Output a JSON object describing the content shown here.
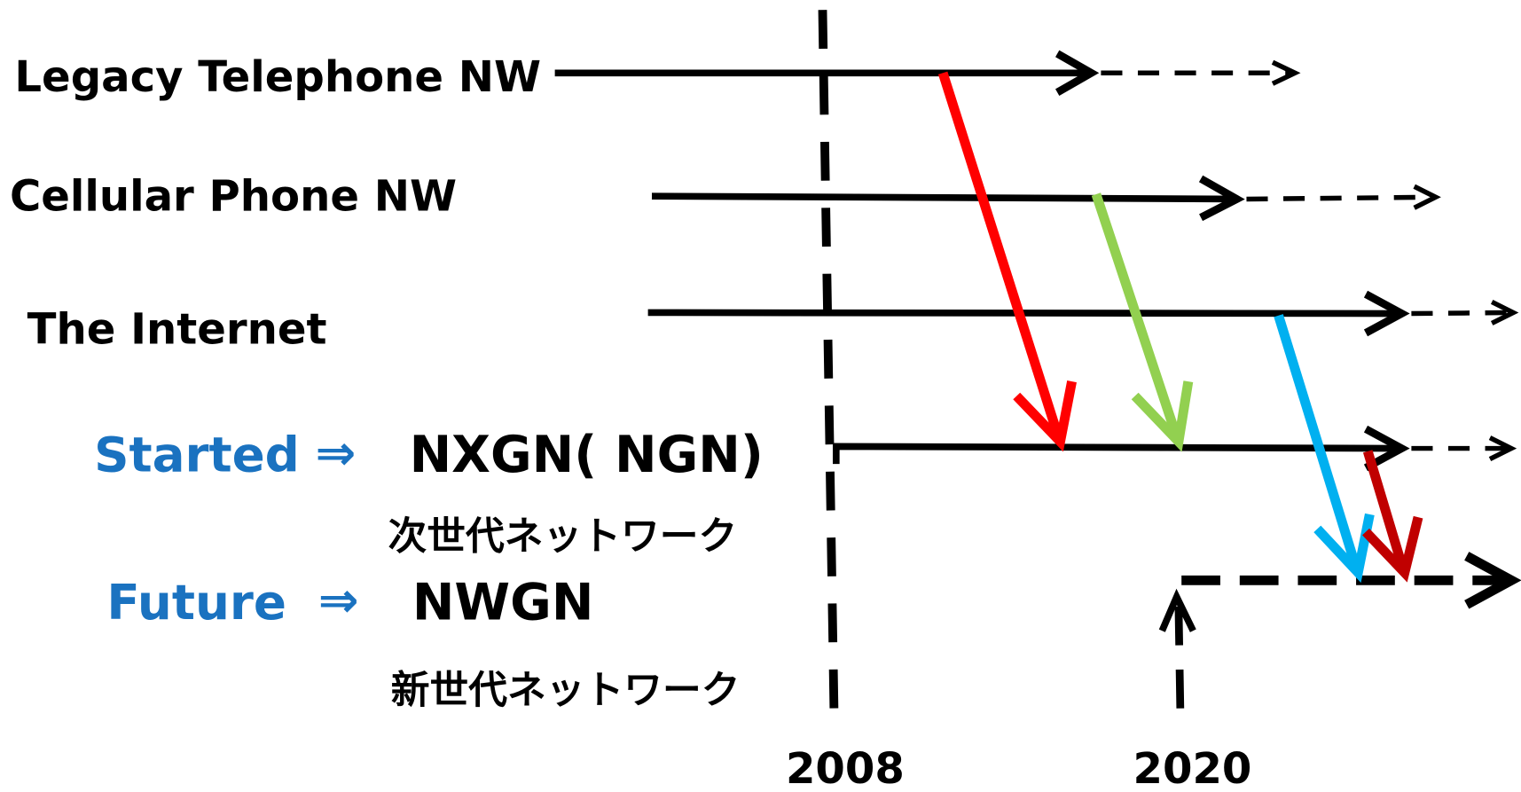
{
  "rows": [
    {
      "label": "Legacy Telephone NW"
    },
    {
      "label": "Cellular Phone NW"
    },
    {
      "label": "The Internet"
    }
  ],
  "started": {
    "prefix": "Started",
    "arrow": "⇒",
    "name": "NXGN( NGN)",
    "japanese": "次世代ネットワーク"
  },
  "future": {
    "prefix": "Future",
    "arrow": "⇒",
    "name": "NWGN",
    "japanese": "新世代ネットワーク"
  },
  "years": [
    "2008",
    "2020"
  ]
}
